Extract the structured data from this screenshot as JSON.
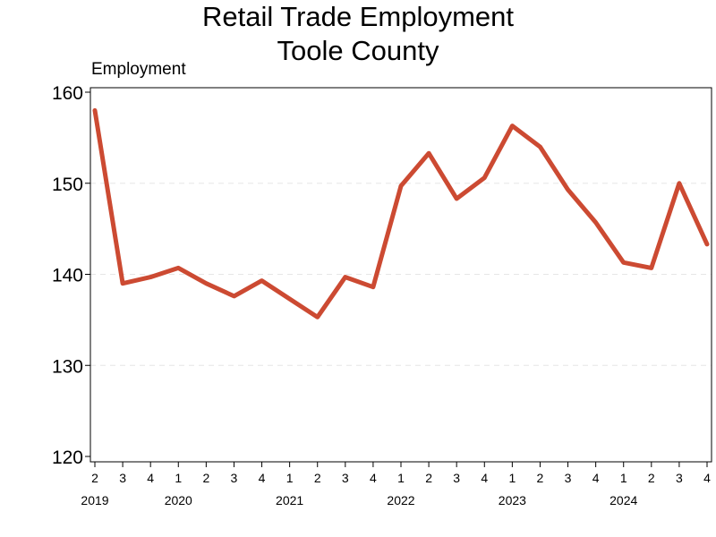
{
  "chart_data": {
    "type": "line",
    "title": "Retail Trade Employment",
    "subtitle": "Toole County",
    "ylabel": "Employment",
    "xlabel": "",
    "ylim": [
      120,
      160
    ],
    "yticks": [
      120,
      130,
      140,
      150,
      160
    ],
    "grid": true,
    "line_color": "#cc4a32",
    "x_quarters": [
      "2",
      "3",
      "4",
      "1",
      "2",
      "3",
      "4",
      "1",
      "2",
      "3",
      "4",
      "1",
      "2",
      "3",
      "4",
      "1",
      "2",
      "3",
      "4",
      "1",
      "2",
      "3",
      "4"
    ],
    "year_labels": [
      {
        "label": "2019",
        "index": 0
      },
      {
        "label": "2020",
        "index": 3
      },
      {
        "label": "2021",
        "index": 7
      },
      {
        "label": "2022",
        "index": 11
      },
      {
        "label": "2023",
        "index": 15
      },
      {
        "label": "2024",
        "index": 19
      }
    ],
    "series": [
      {
        "values": [
          158,
          139,
          139.7,
          140.7,
          139,
          137.6,
          139.3,
          137.3,
          135.3,
          139.7,
          138.6,
          149.7,
          153.3,
          148.3,
          150.6,
          156.3,
          154,
          149.3,
          145.7,
          141.3,
          140.7,
          150,
          143.3
        ]
      }
    ]
  }
}
